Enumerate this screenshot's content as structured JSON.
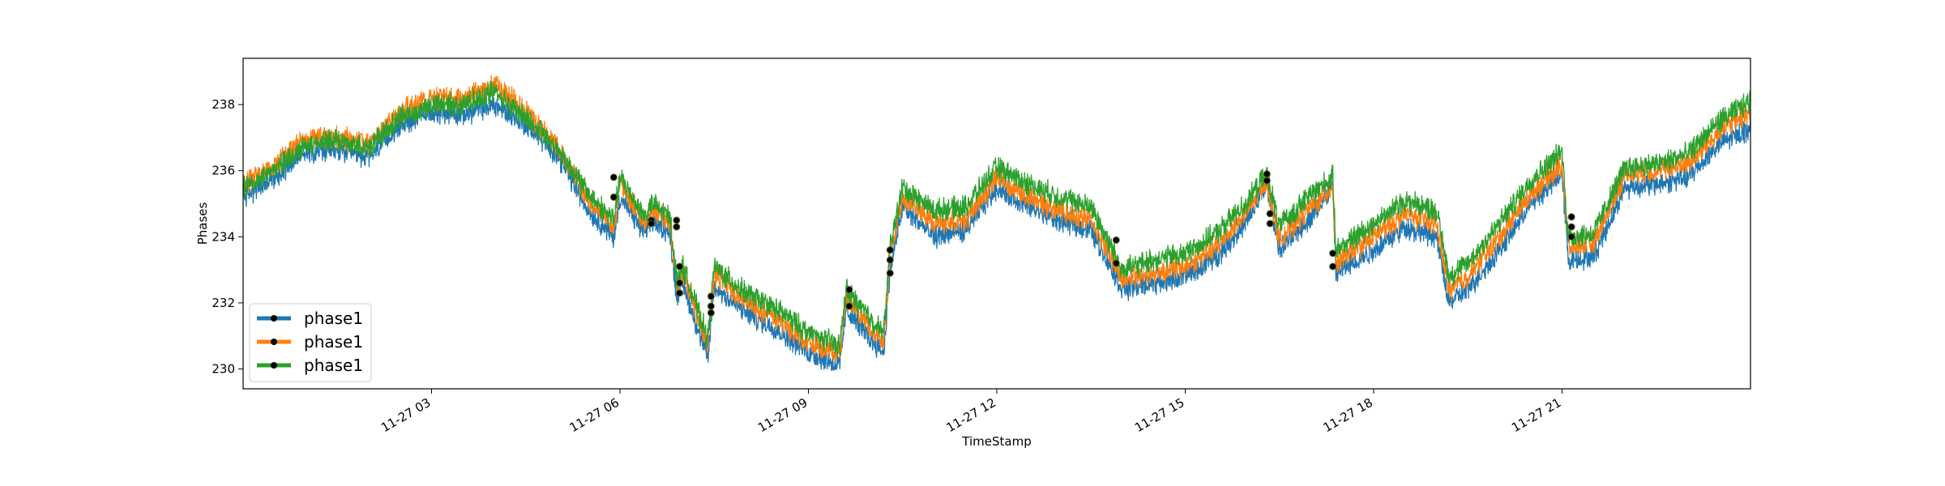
{
  "chart_data": {
    "type": "line",
    "title": "",
    "xlabel": "TimeStamp",
    "ylabel": "Phases",
    "x_range_hours": [
      0.0,
      24.0
    ],
    "ylim": [
      229.4,
      239.4
    ],
    "y_ticks": [
      230,
      232,
      234,
      236,
      238
    ],
    "x_ticks": [
      {
        "hour": 3,
        "label": "11-27 03"
      },
      {
        "hour": 6,
        "label": "11-27 06"
      },
      {
        "hour": 9,
        "label": "11-27 09"
      },
      {
        "hour": 12,
        "label": "11-27 12"
      },
      {
        "hour": 15,
        "label": "11-27 15"
      },
      {
        "hour": 18,
        "label": "11-27 18"
      },
      {
        "hour": 21,
        "label": "11-27 21"
      }
    ],
    "grid": false,
    "legend_position": "lower-left",
    "series": [
      {
        "name": "phase1",
        "color": "#1f77b4",
        "hours": [
          0.0,
          0.5,
          1.0,
          1.5,
          2.0,
          2.5,
          3.0,
          3.5,
          4.0,
          4.5,
          5.0,
          5.5,
          5.9,
          6.0,
          6.4,
          6.5,
          6.8,
          6.9,
          7.0,
          7.4,
          7.5,
          8.0,
          8.5,
          9.0,
          9.5,
          9.6,
          10.0,
          10.2,
          10.3,
          10.5,
          11.0,
          11.5,
          12.0,
          12.5,
          13.0,
          13.5,
          13.9,
          14.0,
          14.5,
          15.0,
          15.5,
          16.0,
          16.3,
          16.5,
          17.0,
          17.35,
          17.4,
          18.0,
          18.5,
          19.0,
          19.2,
          19.5,
          20.0,
          20.5,
          21.0,
          21.1,
          21.5,
          22.0,
          22.5,
          23.0,
          23.5,
          24.0
        ],
        "values": [
          235.2,
          235.8,
          236.6,
          236.6,
          236.4,
          237.4,
          237.8,
          237.7,
          238.0,
          237.4,
          236.5,
          234.8,
          234.0,
          235.2,
          234.1,
          234.5,
          234.1,
          232.2,
          232.6,
          230.3,
          232.5,
          231.7,
          231.2,
          230.5,
          230.1,
          231.8,
          230.9,
          230.5,
          233.0,
          234.9,
          234.0,
          234.2,
          235.5,
          234.9,
          234.5,
          234.2,
          232.8,
          232.4,
          232.6,
          232.8,
          233.4,
          234.5,
          235.6,
          233.6,
          234.6,
          235.5,
          232.9,
          233.6,
          234.3,
          234.0,
          232.0,
          232.4,
          233.6,
          235.0,
          235.9,
          233.3,
          233.4,
          235.5,
          235.6,
          235.8,
          236.8,
          237.3
        ]
      },
      {
        "name": "phase1",
        "color": "#ff7f0e",
        "hours": [
          0.0,
          0.5,
          1.0,
          1.5,
          2.0,
          2.5,
          3.0,
          3.5,
          4.0,
          4.5,
          5.0,
          5.5,
          5.9,
          6.0,
          6.4,
          6.5,
          6.8,
          6.9,
          7.0,
          7.4,
          7.5,
          8.0,
          8.5,
          9.0,
          9.5,
          9.6,
          10.0,
          10.2,
          10.3,
          10.5,
          11.0,
          11.5,
          12.0,
          12.5,
          13.0,
          13.5,
          13.9,
          14.0,
          14.5,
          15.0,
          15.5,
          16.0,
          16.3,
          16.5,
          17.0,
          17.35,
          17.4,
          18.0,
          18.5,
          19.0,
          19.2,
          19.5,
          20.0,
          20.5,
          21.0,
          21.1,
          21.5,
          22.0,
          22.5,
          23.0,
          23.5,
          24.0
        ],
        "values": [
          235.6,
          236.2,
          237.0,
          237.0,
          236.8,
          237.8,
          238.2,
          238.2,
          238.6,
          237.8,
          236.8,
          235.1,
          234.3,
          235.6,
          234.4,
          234.8,
          234.4,
          232.5,
          232.9,
          230.7,
          232.9,
          232.0,
          231.5,
          230.8,
          230.4,
          232.2,
          231.2,
          230.8,
          233.4,
          235.2,
          234.4,
          234.5,
          235.8,
          235.2,
          234.8,
          234.5,
          233.1,
          232.7,
          232.9,
          233.1,
          233.7,
          234.8,
          235.7,
          233.9,
          234.9,
          235.5,
          233.2,
          234.0,
          234.7,
          234.4,
          232.4,
          232.8,
          234.0,
          235.3,
          236.2,
          233.7,
          233.8,
          235.9,
          236.0,
          236.2,
          237.2,
          237.8
        ]
      },
      {
        "name": "phase1",
        "color": "#2ca02c",
        "hours": [
          0.0,
          0.5,
          1.0,
          1.5,
          2.0,
          2.5,
          3.0,
          3.5,
          4.0,
          4.5,
          5.0,
          5.5,
          5.9,
          6.0,
          6.4,
          6.5,
          6.8,
          6.9,
          7.0,
          7.4,
          7.5,
          8.0,
          8.5,
          9.0,
          9.5,
          9.6,
          10.0,
          10.2,
          10.3,
          10.5,
          11.0,
          11.5,
          12.0,
          12.5,
          13.0,
          13.5,
          13.9,
          14.0,
          14.5,
          15.0,
          15.5,
          16.0,
          16.3,
          16.5,
          17.0,
          17.35,
          17.4,
          18.0,
          18.5,
          19.0,
          19.2,
          19.5,
          20.0,
          20.5,
          21.0,
          21.1,
          21.5,
          22.0,
          22.5,
          23.0,
          23.5,
          24.0
        ],
        "values": [
          235.5,
          236.0,
          236.8,
          236.9,
          236.7,
          237.6,
          238.0,
          238.0,
          238.4,
          237.6,
          236.7,
          235.3,
          234.5,
          235.8,
          234.6,
          235.0,
          234.6,
          232.7,
          233.1,
          230.9,
          233.1,
          232.3,
          231.8,
          231.1,
          230.7,
          232.4,
          231.5,
          231.1,
          233.7,
          235.5,
          234.8,
          234.9,
          236.1,
          235.6,
          235.2,
          234.9,
          233.4,
          233.0,
          233.3,
          233.5,
          234.1,
          235.1,
          235.9,
          234.3,
          235.3,
          235.8,
          233.6,
          234.4,
          235.1,
          234.8,
          232.8,
          233.2,
          234.4,
          235.7,
          236.6,
          234.0,
          234.1,
          236.1,
          236.2,
          236.5,
          237.5,
          238.1
        ]
      }
    ],
    "markers": [
      {
        "hour": 5.9,
        "value": 235.8
      },
      {
        "hour": 5.9,
        "value": 235.2
      },
      {
        "hour": 6.5,
        "value": 234.5
      },
      {
        "hour": 6.5,
        "value": 234.4
      },
      {
        "hour": 6.9,
        "value": 234.5
      },
      {
        "hour": 6.9,
        "value": 234.3
      },
      {
        "hour": 6.95,
        "value": 233.1
      },
      {
        "hour": 6.95,
        "value": 232.6
      },
      {
        "hour": 6.95,
        "value": 232.3
      },
      {
        "hour": 7.45,
        "value": 232.2
      },
      {
        "hour": 7.45,
        "value": 231.9
      },
      {
        "hour": 7.45,
        "value": 231.7
      },
      {
        "hour": 9.65,
        "value": 232.4
      },
      {
        "hour": 9.65,
        "value": 231.9
      },
      {
        "hour": 10.3,
        "value": 233.6
      },
      {
        "hour": 10.3,
        "value": 233.3
      },
      {
        "hour": 10.3,
        "value": 232.9
      },
      {
        "hour": 13.9,
        "value": 233.9
      },
      {
        "hour": 13.9,
        "value": 233.2
      },
      {
        "hour": 16.3,
        "value": 235.9
      },
      {
        "hour": 16.3,
        "value": 235.7
      },
      {
        "hour": 16.35,
        "value": 234.7
      },
      {
        "hour": 16.35,
        "value": 234.4
      },
      {
        "hour": 17.35,
        "value": 233.5
      },
      {
        "hour": 17.35,
        "value": 233.1
      },
      {
        "hour": 21.15,
        "value": 234.6
      },
      {
        "hour": 21.15,
        "value": 234.3
      },
      {
        "hour": 21.15,
        "value": 234.0
      }
    ],
    "legend": [
      "phase1",
      "phase1",
      "phase1"
    ]
  }
}
